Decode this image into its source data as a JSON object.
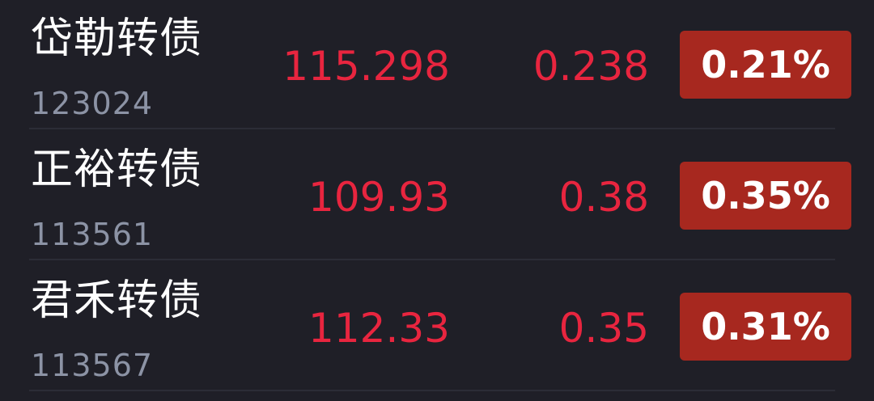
{
  "rows": [
    {
      "name": "岱勒转债",
      "code": "123024",
      "price": "115.298",
      "change": "0.238",
      "percent": "0.21%"
    },
    {
      "name": "正裕转债",
      "code": "113561",
      "price": "109.93",
      "change": "0.38",
      "percent": "0.35%"
    },
    {
      "name": "君禾转债",
      "code": "113567",
      "price": "112.33",
      "change": "0.35",
      "percent": "0.31%"
    }
  ],
  "colors": {
    "background": "#1f1f27",
    "up_text": "#e8253f",
    "badge_bg": "#a7281f",
    "code_text": "#8c93a5"
  }
}
